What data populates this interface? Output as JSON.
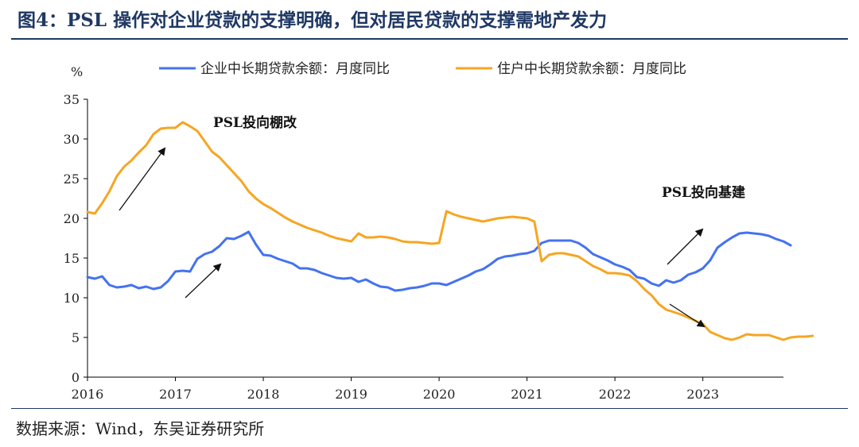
{
  "figure": {
    "title": "图4：PSL 操作对企业贷款的支撑明确，但对居民贷款的支撑需地产发力",
    "source": "数据来源：Wind，东吴证券研究所"
  },
  "chart_data": {
    "type": "line",
    "ylabel": "%",
    "ylim": [
      0,
      35
    ],
    "yticks": [
      0,
      5,
      10,
      15,
      20,
      25,
      30,
      35
    ],
    "xlim": [
      2016,
      2023.917
    ],
    "xticks": [
      "2016",
      "2017",
      "2018",
      "2019",
      "2020",
      "2021",
      "2022",
      "2023"
    ],
    "grid": false,
    "legend_position": "top",
    "series": [
      {
        "name": "企业中长期贷款余额：月度同比",
        "color": "#4472f0",
        "x_start": 2016.0,
        "x_step": 0.08333,
        "values": [
          12.6,
          12.4,
          12.7,
          11.6,
          11.3,
          11.4,
          11.6,
          11.2,
          11.4,
          11.1,
          11.3,
          12.1,
          13.3,
          13.4,
          13.3,
          14.9,
          15.5,
          15.8,
          16.5,
          17.5,
          17.4,
          17.8,
          18.3,
          16.7,
          15.4,
          15.3,
          14.9,
          14.6,
          14.3,
          13.7,
          13.7,
          13.5,
          13.1,
          12.8,
          12.5,
          12.4,
          12.5,
          12.0,
          12.3,
          11.8,
          11.4,
          11.3,
          10.9,
          11.0,
          11.2,
          11.3,
          11.5,
          11.8,
          11.8,
          11.6,
          12.0,
          12.4,
          12.8,
          13.3,
          13.6,
          14.2,
          14.9,
          15.2,
          15.3,
          15.5,
          15.6,
          15.9,
          16.9,
          17.2,
          17.2,
          17.2,
          17.2,
          16.9,
          16.3,
          15.5,
          15.1,
          14.7,
          14.2,
          13.9,
          13.5,
          12.6,
          12.4,
          11.8,
          11.5,
          12.2,
          11.9,
          12.2,
          12.9,
          13.2,
          13.7,
          14.7,
          16.3,
          17.0,
          17.6,
          18.1,
          18.2,
          18.1,
          18.0,
          17.8,
          17.4,
          17.1,
          16.6
        ]
      },
      {
        "name": "住户中长期贷款余额：月度同比",
        "color": "#f5a623",
        "x_start": 2016.0,
        "x_step": 0.08333,
        "values": [
          20.8,
          20.6,
          21.9,
          23.4,
          25.3,
          26.5,
          27.3,
          28.3,
          29.2,
          30.6,
          31.3,
          31.4,
          31.4,
          32.1,
          31.6,
          31.0,
          29.7,
          28.4,
          27.7,
          26.7,
          25.7,
          24.7,
          23.4,
          22.5,
          21.8,
          21.3,
          20.7,
          20.1,
          19.6,
          19.2,
          18.8,
          18.5,
          18.2,
          17.8,
          17.5,
          17.3,
          17.1,
          18.1,
          17.6,
          17.6,
          17.7,
          17.6,
          17.4,
          17.1,
          17.0,
          17.0,
          16.9,
          16.8,
          16.9,
          20.9,
          20.5,
          20.2,
          20.0,
          19.8,
          19.6,
          19.8,
          20.0,
          20.1,
          20.2,
          20.1,
          20.0,
          19.6,
          14.6,
          15.4,
          15.6,
          15.6,
          15.4,
          15.2,
          14.6,
          14.0,
          13.6,
          13.1,
          13.1,
          13.0,
          12.8,
          12.1,
          11.1,
          10.3,
          9.2,
          8.5,
          8.2,
          7.9,
          7.5,
          7.1,
          6.7,
          5.7,
          5.3,
          4.9,
          4.7,
          5.0,
          5.4,
          5.3,
          5.3,
          5.3,
          5.0,
          4.7,
          5.0,
          5.1,
          5.1,
          5.2
        ]
      }
    ],
    "annotations": [
      {
        "text": "PSL投向棚改"
      },
      {
        "text": "PSL投向基建"
      }
    ]
  }
}
